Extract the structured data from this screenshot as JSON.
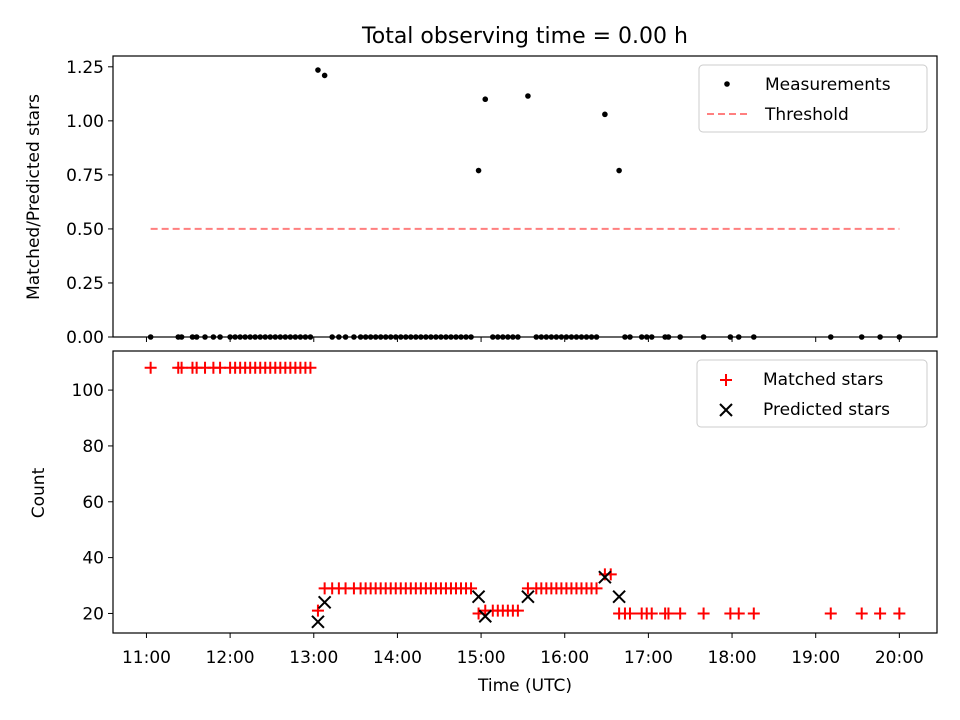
{
  "title": "Total observing time = 0.00 h",
  "colors": {
    "matched": "#ff0000",
    "predicted": "#000000",
    "threshold": "#ff7f7f",
    "measurement": "#000000"
  },
  "x_tick_labels": [
    "11:00",
    "12:00",
    "13:00",
    "14:00",
    "15:00",
    "16:00",
    "17:00",
    "18:00",
    "19:00",
    "20:00"
  ],
  "chart_data": [
    {
      "type": "scatter",
      "panel": "top",
      "xlabel": "",
      "ylabel": "Matched/Predicted stars",
      "x_unit": "hour (UTC)",
      "xlim": [
        10.6,
        20.45
      ],
      "ylim": [
        0,
        1.3
      ],
      "yticks": [
        0.0,
        0.25,
        0.5,
        0.75,
        1.0,
        1.25
      ],
      "ytick_labels": [
        "0.00",
        "0.25",
        "0.50",
        "0.75",
        "1.00",
        "1.25"
      ],
      "grid": false,
      "legend": {
        "placement": "top-right",
        "entries": [
          "Measurements",
          "Threshold"
        ]
      },
      "series": [
        {
          "name": "Measurements",
          "style": "dots",
          "points": [
            [
              11.05,
              0
            ],
            [
              11.38,
              0
            ],
            [
              11.42,
              0
            ],
            [
              11.55,
              0
            ],
            [
              11.6,
              0
            ],
            [
              11.7,
              0
            ],
            [
              11.8,
              0
            ],
            [
              11.88,
              0
            ],
            [
              12.0,
              0
            ],
            [
              12.06,
              0
            ],
            [
              12.12,
              0
            ],
            [
              12.18,
              0
            ],
            [
              12.24,
              0
            ],
            [
              12.3,
              0
            ],
            [
              12.36,
              0
            ],
            [
              12.42,
              0
            ],
            [
              12.48,
              0
            ],
            [
              12.54,
              0
            ],
            [
              12.6,
              0
            ],
            [
              12.66,
              0
            ],
            [
              12.72,
              0
            ],
            [
              12.78,
              0
            ],
            [
              12.84,
              0
            ],
            [
              12.9,
              0
            ],
            [
              12.96,
              0
            ],
            [
              13.05,
              1.235
            ],
            [
              13.13,
              1.21
            ],
            [
              13.22,
              0
            ],
            [
              13.3,
              0
            ],
            [
              13.38,
              0
            ],
            [
              13.48,
              0
            ],
            [
              13.56,
              0
            ],
            [
              13.62,
              0
            ],
            [
              13.68,
              0
            ],
            [
              13.74,
              0
            ],
            [
              13.8,
              0
            ],
            [
              13.86,
              0
            ],
            [
              13.92,
              0
            ],
            [
              13.98,
              0
            ],
            [
              14.04,
              0
            ],
            [
              14.1,
              0
            ],
            [
              14.16,
              0
            ],
            [
              14.22,
              0
            ],
            [
              14.28,
              0
            ],
            [
              14.34,
              0
            ],
            [
              14.4,
              0
            ],
            [
              14.46,
              0
            ],
            [
              14.52,
              0
            ],
            [
              14.58,
              0
            ],
            [
              14.64,
              0
            ],
            [
              14.7,
              0
            ],
            [
              14.76,
              0
            ],
            [
              14.82,
              0
            ],
            [
              14.88,
              0
            ],
            [
              14.97,
              0.77
            ],
            [
              15.05,
              1.1
            ],
            [
              15.14,
              0
            ],
            [
              15.2,
              0
            ],
            [
              15.26,
              0
            ],
            [
              15.32,
              0
            ],
            [
              15.38,
              0
            ],
            [
              15.44,
              0
            ],
            [
              15.56,
              1.115
            ],
            [
              15.66,
              0
            ],
            [
              15.72,
              0
            ],
            [
              15.78,
              0
            ],
            [
              15.84,
              0
            ],
            [
              15.9,
              0
            ],
            [
              15.96,
              0
            ],
            [
              16.02,
              0
            ],
            [
              16.08,
              0
            ],
            [
              16.14,
              0
            ],
            [
              16.2,
              0
            ],
            [
              16.26,
              0
            ],
            [
              16.32,
              0
            ],
            [
              16.38,
              0
            ],
            [
              16.48,
              1.03
            ],
            [
              16.65,
              0.77
            ],
            [
              16.72,
              0
            ],
            [
              16.78,
              0
            ],
            [
              16.92,
              0
            ],
            [
              16.98,
              0
            ],
            [
              17.04,
              0
            ],
            [
              17.2,
              0
            ],
            [
              17.24,
              0
            ],
            [
              17.38,
              0
            ],
            [
              17.66,
              0
            ],
            [
              17.98,
              0
            ],
            [
              18.08,
              0
            ],
            [
              18.26,
              0
            ],
            [
              19.18,
              0
            ],
            [
              19.55,
              0
            ],
            [
              19.77,
              0
            ],
            [
              20.0,
              0
            ]
          ]
        },
        {
          "name": "Threshold",
          "style": "dashed-line",
          "points": [
            [
              11.05,
              0.5
            ],
            [
              20.0,
              0.5
            ]
          ]
        }
      ]
    },
    {
      "type": "scatter",
      "panel": "bottom",
      "xlabel": "Time (UTC)",
      "ylabel": "Count",
      "x_unit": "hour (UTC)",
      "xlim": [
        10.6,
        20.45
      ],
      "ylim": [
        13,
        114
      ],
      "yticks": [
        20,
        40,
        60,
        80,
        100
      ],
      "ytick_labels": [
        "20",
        "40",
        "60",
        "80",
        "100"
      ],
      "grid": false,
      "legend": {
        "placement": "top-right",
        "entries": [
          "Matched stars",
          "Predicted stars"
        ]
      },
      "series": [
        {
          "name": "Matched stars",
          "marker": "plus",
          "points": [
            [
              11.05,
              108
            ],
            [
              11.38,
              108
            ],
            [
              11.42,
              108
            ],
            [
              11.55,
              108
            ],
            [
              11.6,
              108
            ],
            [
              11.7,
              108
            ],
            [
              11.8,
              108
            ],
            [
              11.88,
              108
            ],
            [
              12.0,
              108
            ],
            [
              12.06,
              108
            ],
            [
              12.12,
              108
            ],
            [
              12.18,
              108
            ],
            [
              12.24,
              108
            ],
            [
              12.3,
              108
            ],
            [
              12.36,
              108
            ],
            [
              12.42,
              108
            ],
            [
              12.48,
              108
            ],
            [
              12.54,
              108
            ],
            [
              12.6,
              108
            ],
            [
              12.66,
              108
            ],
            [
              12.72,
              108
            ],
            [
              12.78,
              108
            ],
            [
              12.84,
              108
            ],
            [
              12.9,
              108
            ],
            [
              12.96,
              108
            ],
            [
              13.05,
              21
            ],
            [
              13.13,
              29
            ],
            [
              13.22,
              29
            ],
            [
              13.3,
              29
            ],
            [
              13.38,
              29
            ],
            [
              13.48,
              29
            ],
            [
              13.56,
              29
            ],
            [
              13.62,
              29
            ],
            [
              13.68,
              29
            ],
            [
              13.74,
              29
            ],
            [
              13.8,
              29
            ],
            [
              13.86,
              29
            ],
            [
              13.92,
              29
            ],
            [
              13.98,
              29
            ],
            [
              14.04,
              29
            ],
            [
              14.1,
              29
            ],
            [
              14.16,
              29
            ],
            [
              14.22,
              29
            ],
            [
              14.28,
              29
            ],
            [
              14.34,
              29
            ],
            [
              14.4,
              29
            ],
            [
              14.46,
              29
            ],
            [
              14.52,
              29
            ],
            [
              14.58,
              29
            ],
            [
              14.64,
              29
            ],
            [
              14.7,
              29
            ],
            [
              14.76,
              29
            ],
            [
              14.82,
              29
            ],
            [
              14.88,
              29
            ],
            [
              14.97,
              20
            ],
            [
              15.05,
              21
            ],
            [
              15.14,
              21
            ],
            [
              15.2,
              21
            ],
            [
              15.26,
              21
            ],
            [
              15.32,
              21
            ],
            [
              15.38,
              21
            ],
            [
              15.44,
              21
            ],
            [
              15.56,
              29
            ],
            [
              15.66,
              29
            ],
            [
              15.72,
              29
            ],
            [
              15.78,
              29
            ],
            [
              15.84,
              29
            ],
            [
              15.9,
              29
            ],
            [
              15.96,
              29
            ],
            [
              16.02,
              29
            ],
            [
              16.08,
              29
            ],
            [
              16.14,
              29
            ],
            [
              16.2,
              29
            ],
            [
              16.26,
              29
            ],
            [
              16.32,
              29
            ],
            [
              16.38,
              29
            ],
            [
              16.48,
              34
            ],
            [
              16.55,
              34
            ],
            [
              16.65,
              20
            ],
            [
              16.72,
              20
            ],
            [
              16.78,
              20
            ],
            [
              16.92,
              20
            ],
            [
              16.98,
              20
            ],
            [
              17.04,
              20
            ],
            [
              17.2,
              20
            ],
            [
              17.24,
              20
            ],
            [
              17.38,
              20
            ],
            [
              17.66,
              20
            ],
            [
              17.98,
              20
            ],
            [
              18.08,
              20
            ],
            [
              18.26,
              20
            ],
            [
              19.18,
              20
            ],
            [
              19.55,
              20
            ],
            [
              19.77,
              20
            ],
            [
              20.0,
              20
            ]
          ]
        },
        {
          "name": "Predicted stars",
          "marker": "x",
          "points": [
            [
              13.05,
              17
            ],
            [
              13.13,
              24
            ],
            [
              14.97,
              26
            ],
            [
              15.05,
              19
            ],
            [
              15.56,
              26
            ],
            [
              16.48,
              33
            ],
            [
              16.65,
              26
            ]
          ]
        }
      ]
    }
  ]
}
